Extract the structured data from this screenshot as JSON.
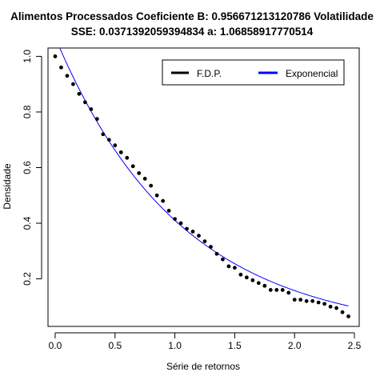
{
  "chart_data": {
    "type": "scatter",
    "title_line1": "Alimentos Processados Coeficiente B:  0.956671213120786 Volatilidade",
    "title_line2": "SSE: 0.0371392059394834  a:  1.06858917770514",
    "xlabel": "Série de retornos",
    "ylabel": "Densidade",
    "xlim": [
      -0.06,
      2.54
    ],
    "ylim": [
      0.029,
      1.03
    ],
    "x_ticks": [
      0.0,
      0.5,
      1.0,
      1.5,
      2.0,
      2.5
    ],
    "x_tick_labels": [
      "0.0",
      "0.5",
      "1.0",
      "1.5",
      "2.0",
      "2.5"
    ],
    "y_ticks": [
      0.2,
      0.4,
      0.6,
      0.8,
      1.0
    ],
    "y_tick_labels": [
      "0.2",
      "0.4",
      "0.6",
      "0.8",
      "1.0"
    ],
    "grid": false,
    "legend_position": "top-right",
    "legend": [
      {
        "name": "F.D.P.",
        "color": "#000000"
      },
      {
        "name": "Exponencial",
        "color": "#0000ff"
      }
    ],
    "series": [
      {
        "name": "F.D.P.",
        "kind": "points",
        "color": "#000000",
        "x": [
          0.0,
          0.05,
          0.1,
          0.15,
          0.2,
          0.25,
          0.3,
          0.35,
          0.4,
          0.45,
          0.5,
          0.55,
          0.6,
          0.65,
          0.7,
          0.75,
          0.8,
          0.85,
          0.9,
          0.95,
          1.0,
          1.05,
          1.1,
          1.15,
          1.2,
          1.25,
          1.3,
          1.35,
          1.4,
          1.45,
          1.5,
          1.55,
          1.6,
          1.65,
          1.7,
          1.75,
          1.8,
          1.85,
          1.9,
          1.95,
          2.0,
          2.05,
          2.1,
          2.15,
          2.2,
          2.25,
          2.3,
          2.35,
          2.4,
          2.45
        ],
        "y": [
          1.0,
          0.96,
          0.93,
          0.9,
          0.865,
          0.835,
          0.81,
          0.775,
          0.72,
          0.7,
          0.68,
          0.655,
          0.635,
          0.605,
          0.58,
          0.56,
          0.535,
          0.5,
          0.48,
          0.445,
          0.415,
          0.4,
          0.38,
          0.37,
          0.355,
          0.335,
          0.315,
          0.29,
          0.27,
          0.245,
          0.24,
          0.215,
          0.205,
          0.195,
          0.185,
          0.175,
          0.16,
          0.16,
          0.16,
          0.15,
          0.125,
          0.125,
          0.12,
          0.12,
          0.115,
          0.11,
          0.1,
          0.095,
          0.08,
          0.065
        ]
      },
      {
        "name": "Exponencial",
        "kind": "line",
        "color": "#0000ff",
        "a": 1.06858917770514,
        "b": 0.956671213120786,
        "x_range": [
          0.0,
          2.45
        ]
      }
    ]
  }
}
